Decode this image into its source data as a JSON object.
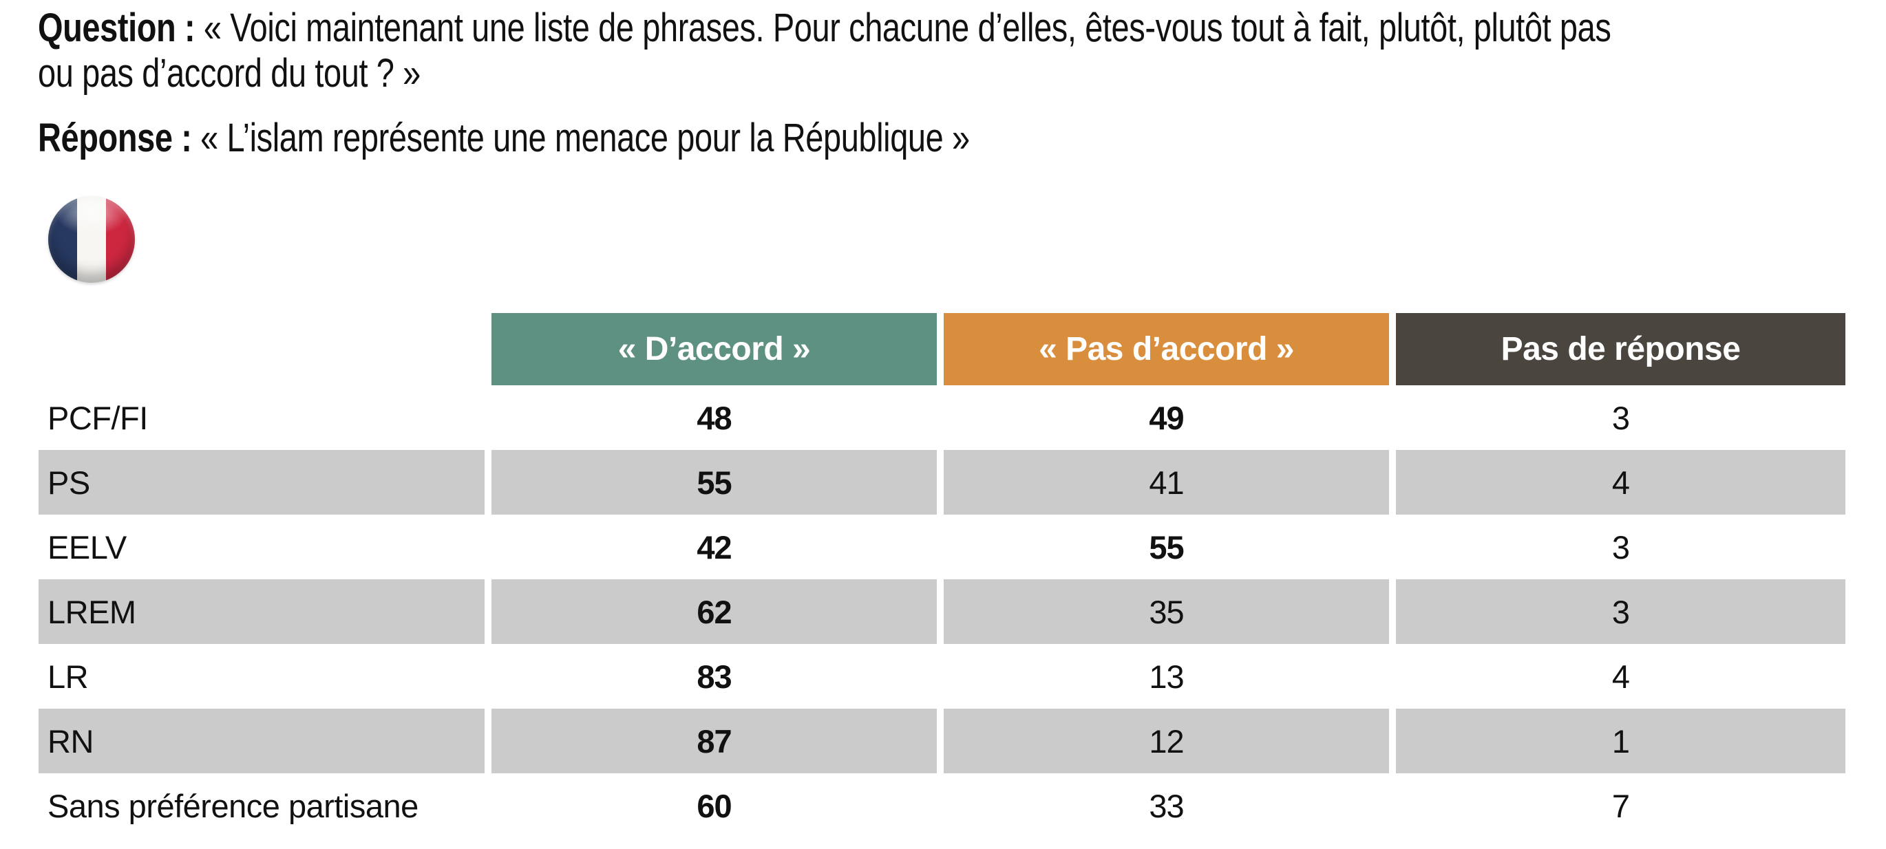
{
  "question": {
    "prefix": "Question :",
    "line1": "« Voici maintenant une liste de phrases. Pour chacune d’elles, êtes-vous tout à fait, plutôt, plutôt pas",
    "line2": "ou pas d’accord du tout ? »"
  },
  "reponse": {
    "prefix": "Réponse :",
    "text": "« L’islam représente une menace pour la République »"
  },
  "flag_icon": "france-flag-round",
  "colors": {
    "header_agree": "#5f9182",
    "header_disagree": "#d98e3e",
    "header_noanswer": "#4a463f",
    "row_alt_gray": "#cbcbcb",
    "text": "#111111",
    "header_text": "#ffffff"
  },
  "chart_data": {
    "type": "table",
    "question": "Question : « Voici maintenant une liste de phrases. Pour chacune d’elles, êtes-vous tout à fait, plutôt, plutôt pas ou pas d’accord du tout ? »",
    "title": "Réponse : « L’islam représente une menace pour la République »",
    "columns": [
      "« D’accord »",
      "« Pas d’accord »",
      "Pas de réponse"
    ],
    "column_colors": [
      "#5f9182",
      "#d98e3e",
      "#4a463f"
    ],
    "values_are_percent": true,
    "rows": [
      {
        "label": "PCF/FI",
        "values": [
          48,
          49,
          3
        ]
      },
      {
        "label": "PS",
        "values": [
          55,
          41,
          4
        ]
      },
      {
        "label": "EELV",
        "values": [
          42,
          55,
          3
        ]
      },
      {
        "label": "LREM",
        "values": [
          62,
          35,
          3
        ]
      },
      {
        "label": "LR",
        "values": [
          83,
          13,
          4
        ]
      },
      {
        "label": "RN",
        "values": [
          87,
          12,
          1
        ]
      },
      {
        "label": "Sans préférence partisane",
        "values": [
          60,
          33,
          7
        ]
      }
    ]
  }
}
